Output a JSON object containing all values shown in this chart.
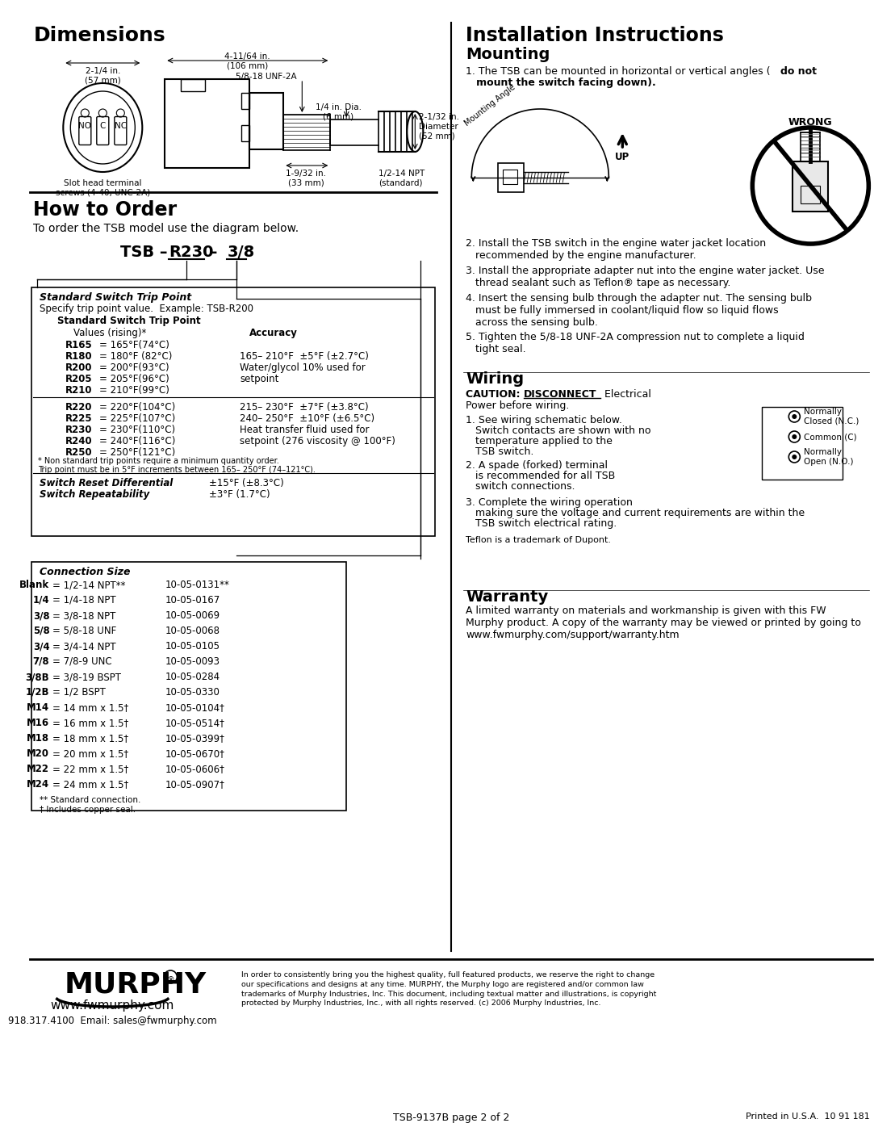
{
  "bg_color": "#ffffff",
  "dimensions_title": "Dimensions",
  "dim_2_14": "2-1/4 in.\n(57 mm)",
  "dim_4_11": "4-11/64 in.\n(106 mm)",
  "dim_2_32": "2-1/32 in.\nDiameter\n(52 mm)",
  "dim_unf": "5/8-18 UNF-2A",
  "dim_14dia": "1/4 in. Dia.\n(6 mm)",
  "dim_1_9": "1-9/32 in.\n(33 mm)",
  "dim_npt": "1/2-14 NPT\n(standard)",
  "dim_slot": "Slot head terminal\nscrews (4-40, UNC-2A)",
  "how_order_title": "How to Order",
  "how_order_sub": "To order the TSB model use the diagram below.",
  "model_tsb": "TSB – ",
  "model_r230": "R230",
  "model_dash": " – ",
  "model_38": "3/8",
  "box1_title": "Standard Switch Trip Point",
  "box1_sub": "Specify trip point value.  Example: TSB-R200",
  "box1_col1": "Standard Switch Trip Point",
  "box1_col1b": "Values (rising)*",
  "box1_col2": "Accuracy",
  "trip_g1": [
    [
      "R165",
      "165°F(74°C)",
      ""
    ],
    [
      "R180",
      "180°F (82°C)",
      "165– 210°F  ±5°F (±2.7°C)"
    ],
    [
      "R200",
      "200°F(93°C)",
      "Water/glycol 10% used for"
    ],
    [
      "R205",
      "205°F(96°C)",
      "setpoint"
    ],
    [
      "R210",
      "210°F(99°C)",
      ""
    ]
  ],
  "trip_g2": [
    [
      "R220",
      "220°F(104°C)",
      "215– 230°F  ±7°F (±3.8°C)"
    ],
    [
      "R225",
      "225°F(107°C)",
      "240– 250°F  ±10°F (±6.5°C)"
    ],
    [
      "R230",
      "230°F(110°C)",
      "Heat transfer fluid used for"
    ],
    [
      "R240",
      "240°F(116°C)",
      "setpoint (276 viscosity @ 100°F)"
    ],
    [
      "R250",
      "250°F(121°C)",
      ""
    ]
  ],
  "fn1": "* Non standard trip points require a minimum quantity order.",
  "fn2": "Trip point must be in 5°F increments between 165– 250°F (74–121°C).",
  "reset_label": "Switch Reset Differential",
  "reset_val": "±15°F (±8.3°C)",
  "repeat_label": "Switch Repeatability",
  "repeat_val": "±3°F (1.7°C)",
  "conn_title": "Connection Size",
  "conn_sizes": [
    [
      "Blank",
      "1/2-14 NPT**",
      "10-05-0131**"
    ],
    [
      "1/4",
      "1/4-18 NPT",
      "10-05-0167"
    ],
    [
      "3/8",
      "3/8-18 NPT",
      "10-05-0069"
    ],
    [
      "5/8",
      "5/8-18 UNF",
      "10-05-0068"
    ],
    [
      "3/4",
      "3/4-14 NPT",
      "10-05-0105"
    ],
    [
      "7/8",
      "7/8-9 UNC",
      "10-05-0093"
    ],
    [
      "3/8B",
      "3/8-19 BSPT",
      "10-05-0284"
    ],
    [
      "1/2B",
      "1/2 BSPT",
      "10-05-0330"
    ],
    [
      "M14",
      "14 mm x 1.5†",
      "10-05-0104†"
    ],
    [
      "M16",
      "16 mm x 1.5†",
      "10-05-0514†"
    ],
    [
      "M18",
      "18 mm x 1.5†",
      "10-05-0399†"
    ],
    [
      "M20",
      "20 mm x 1.5†",
      "10-05-0670†"
    ],
    [
      "M22",
      "22 mm x 1.5†",
      "10-05-0606†"
    ],
    [
      "M24",
      "24 mm x 1.5†",
      "10-05-0907†"
    ]
  ],
  "conn_fn1": "** Standard connection.",
  "conn_fn2": "† Includes copper seal.",
  "install_title": "Installation Instructions",
  "mounting_title": "Mounting",
  "mount1a": "1. The TSB can be mounted in horizontal or vertical angles (",
  "mount1b": "do not",
  "mount1c": "   mount the switch facing down).",
  "mount2": "2. Install the TSB switch in the engine water jacket location\n   recommended by the engine manufacturer.",
  "mount3": "3. Install the appropriate adapter nut into the engine water jacket. Use\n   thread sealant such as Teflon® tape as necessary.",
  "mount4": "4. Insert the sensing bulb through the adapter nut. The sensing bulb\n   must be fully immersed in coolant/liquid flow so liquid flows\n   across the sensing bulb.",
  "mount5": "5. Tighten the 5/8-18 UNF-2A compression nut to complete a liquid\n   tight seal.",
  "wiring_title": "Wiring",
  "caution_bold": "CAUTION:",
  "caution_under": "DISCONNECT",
  "caution_rest1": " Electrical",
  "caution_rest2": "Power before wiring.",
  "wire1a": "1. See wiring schematic below.",
  "wire1b": "Switch contacts are shown with no",
  "wire1c": "temperature applied to the",
  "wire1d": "TSB switch.",
  "wire2a": "2. A spade (forked) terminal",
  "wire2b": "is recommended for all TSB",
  "wire2c": "switch connections.",
  "wire3a": "3. Complete the wiring operation",
  "wire3b": "making sure the voltage and current requirements are within the",
  "wire3c": "TSB switch electrical rating.",
  "wire_lbl1": "Normally\nClosed (N.C.)",
  "wire_lbl2": "Common (C)",
  "wire_lbl3": "Normally\nOpen (N.O.)",
  "teflon_note": "Teflon is a trademark of Dupont.",
  "warranty_title": "Warranty",
  "warranty_text": "A limited warranty on materials and workmanship is given with this FW\nMurphy product. A copy of the warranty may be viewed or printed by going to\nwww.fwmurphy.com/support/warranty.htm",
  "logo_text": "MURPHY",
  "logo_web": "www.fwmurphy.com",
  "logo_phone": "918.317.4100  Email: sales@fwmurphy.com",
  "legal_text": "In order to consistently bring you the highest quality, full featured products, we reserve the right to change\nour specifications and designs at any time. MURPHY, the Murphy logo are registered and/or common law\ntrademarks of Murphy Industries, Inc. This document, including textual matter and illustrations, is copyright\nprotected by Murphy Industries, Inc., with all rights reserved. (c) 2006 Murphy Industries, Inc.",
  "page_num": "TSB-9137B page 2 of 2",
  "printed": "Printed in U.S.A.  10 91 181"
}
